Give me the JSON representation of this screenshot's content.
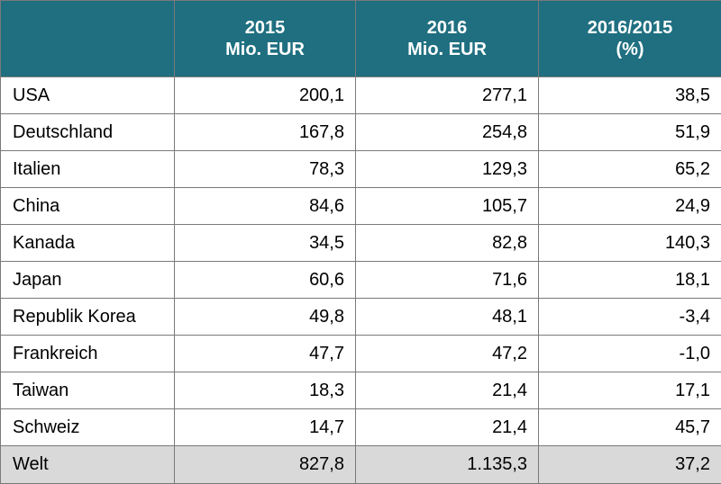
{
  "chart_data": {
    "type": "table",
    "columns": [
      {
        "line1": "",
        "line2": ""
      },
      {
        "line1": "2015",
        "line2": "Mio. EUR"
      },
      {
        "line1": "2016",
        "line2": "Mio. EUR"
      },
      {
        "line1": "2016/2015",
        "line2": "(%)"
      }
    ],
    "rows": [
      {
        "country": "USA",
        "v2015": "200,1",
        "v2016": "277,1",
        "change": "38,5"
      },
      {
        "country": "Deutschland",
        "v2015": "167,8",
        "v2016": "254,8",
        "change": "51,9"
      },
      {
        "country": "Italien",
        "v2015": "78,3",
        "v2016": "129,3",
        "change": "65,2"
      },
      {
        "country": "China",
        "v2015": "84,6",
        "v2016": "105,7",
        "change": "24,9"
      },
      {
        "country": "Kanada",
        "v2015": "34,5",
        "v2016": "82,8",
        "change": "140,3"
      },
      {
        "country": "Japan",
        "v2015": "60,6",
        "v2016": "71,6",
        "change": "18,1"
      },
      {
        "country": "Republik Korea",
        "v2015": "49,8",
        "v2016": "48,1",
        "change": "-3,4"
      },
      {
        "country": "Frankreich",
        "v2015": "47,7",
        "v2016": "47,2",
        "change": "-1,0"
      },
      {
        "country": "Taiwan",
        "v2015": "18,3",
        "v2016": "21,4",
        "change": "17,1"
      },
      {
        "country": "Schweiz",
        "v2015": "14,7",
        "v2016": "21,4",
        "change": "45,7"
      }
    ],
    "total": {
      "country": "Welt",
      "v2015": "827,8",
      "v2016": "1.135,3",
      "change": "37,2"
    }
  },
  "colors": {
    "header_bg": "#1f6f80",
    "header_text": "#ffffff",
    "total_row_bg": "#d9d9d9",
    "grid": "#7a7a7a"
  }
}
